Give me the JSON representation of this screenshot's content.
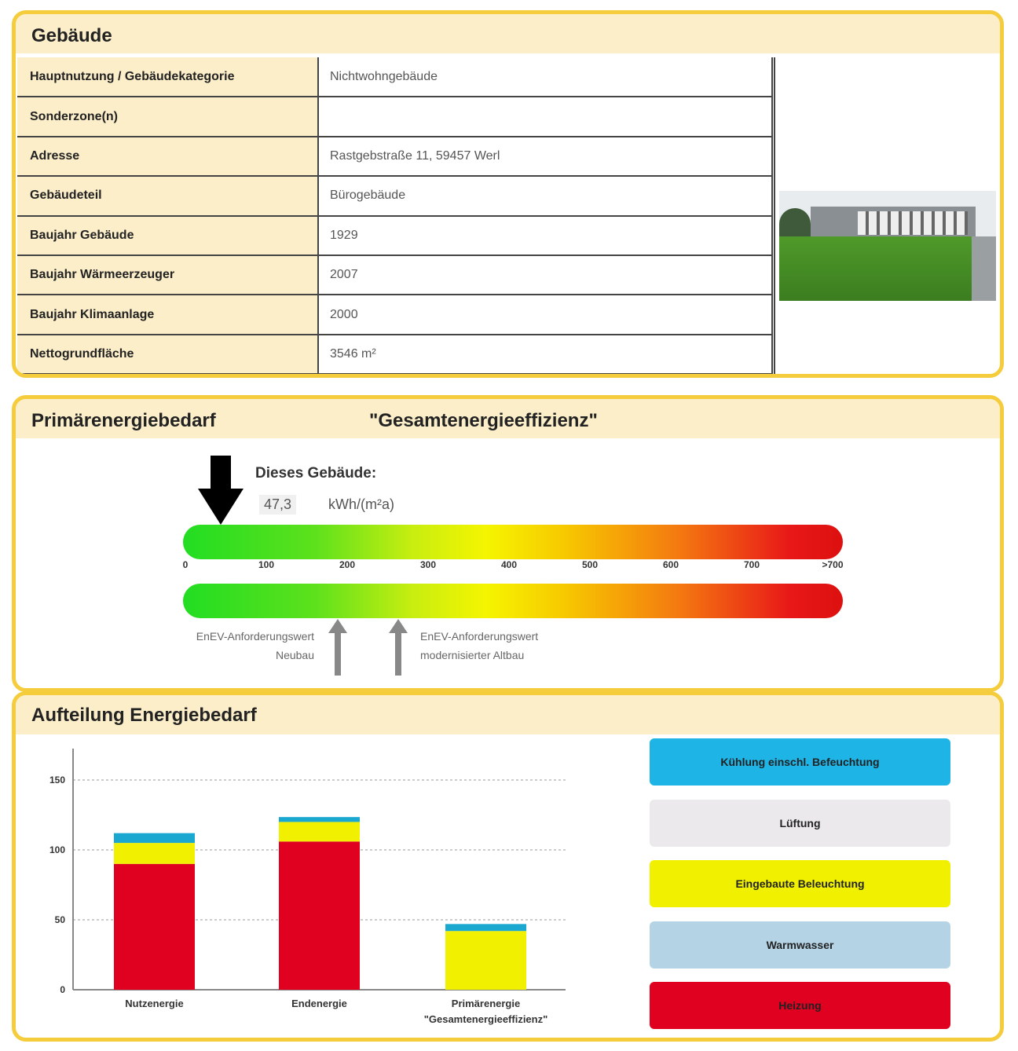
{
  "gebaeude": {
    "title": "Gebäude",
    "rows": [
      {
        "label": "Hauptnutzung / Gebäudekategorie",
        "value": "Nichtwohngebäude"
      },
      {
        "label": "Sonderzone(n)",
        "value": ""
      },
      {
        "label": "Adresse",
        "value": "Rastgebstraße 11, 59457 Werl"
      },
      {
        "label": "Gebäudeteil",
        "value": "Bürogebäude"
      },
      {
        "label": "Baujahr Gebäude",
        "value": "1929"
      },
      {
        "label": "Baujahr Wärmeerzeuger",
        "value": "2007"
      },
      {
        "label": "Baujahr Klimaanlage",
        "value": "2000"
      },
      {
        "label": "Nettogrundfläche",
        "value": "3546 m²"
      }
    ]
  },
  "primaer": {
    "title": "Primärenergiebedarf",
    "subtitle": "\"Gesamtenergieeffizienz\"",
    "this_building": "Dieses Gebäude:",
    "value": "47,3",
    "unit": "kWh/(m²a)",
    "value_num": 47.3,
    "ticks": [
      "0",
      "100",
      "200",
      "300",
      "400",
      "500",
      "600",
      "700",
      ">700"
    ],
    "ref_neubau": {
      "line1": "EnEV-Anforderungswert",
      "line2": "Neubau",
      "value": 190
    },
    "ref_altbau": {
      "line1": "EnEV-Anforderungswert",
      "line2": "modernisierter Altbau",
      "value": 265
    }
  },
  "chart_data": {
    "type": "bar",
    "title": "Aufteilung Energiebedarf",
    "stacked": true,
    "ylim": [
      0,
      150
    ],
    "yticks": [
      "0",
      "50",
      "100",
      "150"
    ],
    "grid": true,
    "categories": [
      "Nutzenergie",
      "Endenergie",
      "Primärenergie \"Gesamtenergieeffizienz\""
    ],
    "series": [
      {
        "name": "Heizung",
        "color": "#e00020",
        "values": [
          90,
          106,
          0
        ]
      },
      {
        "name": "Eingebaute Beleuchtung",
        "color": "#f0f000",
        "values": [
          15,
          14,
          42
        ]
      },
      {
        "name": "Kühlung einschl. Befeuchtung",
        "color": "#1aa8d0",
        "values": [
          7,
          3.5,
          5
        ]
      }
    ],
    "legend": [
      {
        "name": "Kühlung einschl. Befeuchtung",
        "color": "#1eb4e6"
      },
      {
        "name": "Lüftung",
        "color": "#ebe9ec"
      },
      {
        "name": "Eingebaute Beleuchtung",
        "color": "#f0f000"
      },
      {
        "name": "Warmwasser",
        "color": "#b4d4e6"
      },
      {
        "name": "Heizung",
        "color": "#e00020"
      }
    ],
    "legend_position": "right"
  }
}
